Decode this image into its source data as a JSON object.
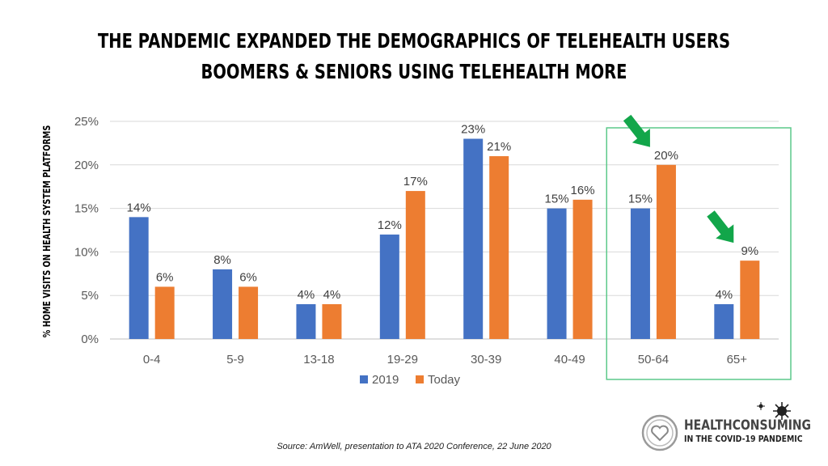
{
  "title_line1": "THE PANDEMIC EXPANDED THE DEMOGRAPHICS OF TELEHEALTH USERS",
  "title_line2": "BOOMERS & SENIORS USING TELEHEALTH MORE",
  "source": "Source: AmWell, presentation to ATA 2020 Conference, 22 June 2020",
  "logo": {
    "line1": "HEALTHCONSUMING",
    "line2": "IN THE COVID-19 PANDEMIC",
    "icon": "heart-circle-icon",
    "virus_icon": "virus-icon"
  },
  "colors": {
    "series_2019": "#4472C4",
    "series_today": "#ED7D31",
    "highlight_box": "#5cc98a",
    "arrow": "#12a64a"
  },
  "chart_data": {
    "type": "bar",
    "categories": [
      "0-4",
      "5-9",
      "13-18",
      "19-29",
      "30-39",
      "40-49",
      "50-64",
      "65+"
    ],
    "series": [
      {
        "name": "2019",
        "values": [
          14,
          8,
          4,
          12,
          23,
          15,
          15,
          4
        ],
        "labels": [
          "14%",
          "8%",
          "4%",
          "12%",
          "23%",
          "15%",
          "15%",
          "4%"
        ]
      },
      {
        "name": "Today",
        "values": [
          6,
          6,
          4,
          17,
          21,
          16,
          20,
          9
        ],
        "labels": [
          "6%",
          "6%",
          "4%",
          "17%",
          "21%",
          "16%",
          "20%",
          "9%"
        ]
      }
    ],
    "ylabel": "% HOME VISITS ON HEALTH SYSTEM PLATFORMS",
    "ylim": [
      0,
      25
    ],
    "yticks": [
      0,
      5,
      10,
      15,
      20,
      25
    ],
    "ytick_labels": [
      "0%",
      "5%",
      "10%",
      "15%",
      "20%",
      "25%"
    ],
    "grid": true,
    "legend": "bottom-center",
    "highlighted_categories": [
      "50-64",
      "65+"
    ],
    "arrows_on": [
      "50-64",
      "65+"
    ]
  }
}
